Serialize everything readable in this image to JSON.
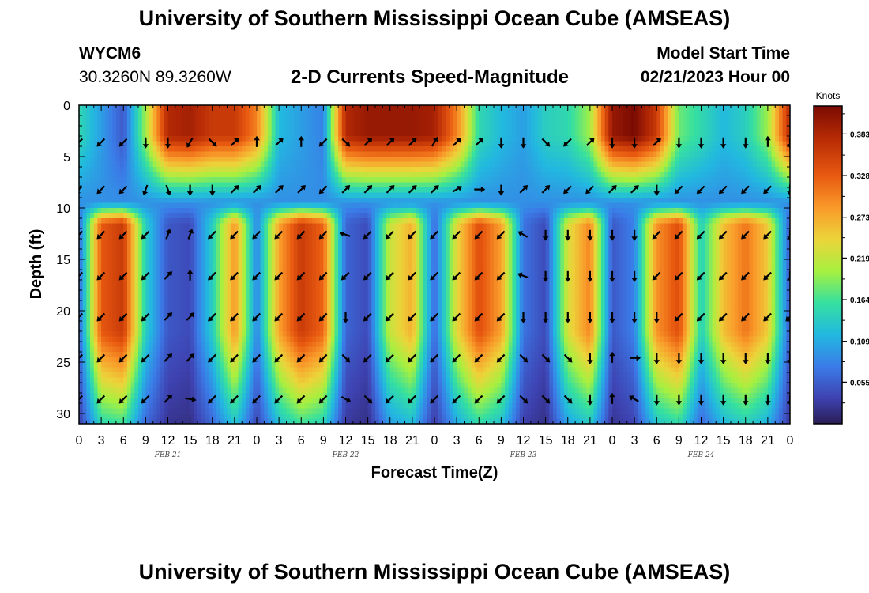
{
  "header": {
    "title": "University of Southern Mississippi Ocean Cube (AMSEAS)",
    "station_id": "WYCM6",
    "coordinates": "30.3260N  89.3260W",
    "plot_title": "2-D Currents Speed-Magnitude",
    "start_label": "Model Start Time",
    "start_value": "02/21/2023 Hour 00"
  },
  "footer": {
    "title": "University of Southern Mississippi Ocean Cube (AMSEAS)"
  },
  "chart_data": {
    "type": "heatmap",
    "title": "2-D Currents Speed-Magnitude",
    "xlabel": "Forecast Time(Z)",
    "ylabel": "Depth (ft)",
    "xlim": [
      0,
      96
    ],
    "ylim": [
      31,
      0
    ],
    "x_tick_labels": [
      "0",
      "3",
      "6",
      "9",
      "12",
      "15",
      "18",
      "21",
      "0",
      "3",
      "6",
      "9",
      "12",
      "15",
      "18",
      "21",
      "0",
      "3",
      "6",
      "9",
      "12",
      "15",
      "18",
      "21",
      "0",
      "3",
      "6",
      "9",
      "12",
      "15",
      "18",
      "21",
      "0"
    ],
    "y_ticks": [
      0,
      5,
      10,
      15,
      20,
      25,
      30
    ],
    "date_labels": [
      {
        "label": "FEB 21",
        "hour": 12
      },
      {
        "label": "FEB 22",
        "hour": 36
      },
      {
        "label": "FEB 23",
        "hour": 60
      },
      {
        "label": "FEB 24",
        "hour": 84
      }
    ],
    "colorbar": {
      "unit": "Knots",
      "range": [
        0.0,
        0.42
      ],
      "tick_values": [
        0.055,
        0.109,
        0.164,
        0.219,
        0.273,
        0.328,
        0.383
      ],
      "tick_labels": [
        "0.055",
        "0.109",
        "0.164",
        "0.219",
        "0.273",
        "0.328",
        "0.383"
      ]
    },
    "surface_speed_profile": {
      "hours": [
        0,
        3,
        6,
        9,
        12,
        15,
        18,
        21,
        24,
        27,
        30,
        33,
        36,
        39,
        42,
        45,
        48,
        51,
        54,
        57,
        60,
        63,
        66,
        69,
        72,
        75,
        78,
        81,
        84,
        87,
        90,
        93,
        96
      ],
      "speed_knots": [
        0.15,
        0.1,
        0.05,
        0.2,
        0.38,
        0.39,
        0.36,
        0.36,
        0.3,
        0.12,
        0.1,
        0.08,
        0.38,
        0.4,
        0.4,
        0.4,
        0.39,
        0.3,
        0.15,
        0.12,
        0.1,
        0.14,
        0.15,
        0.2,
        0.4,
        0.42,
        0.36,
        0.18,
        0.15,
        0.12,
        0.14,
        0.2,
        0.38
      ]
    },
    "subsurface_speed_profile": {
      "hours": [
        0,
        3,
        6,
        9,
        12,
        15,
        18,
        21,
        24,
        27,
        30,
        33,
        36,
        39,
        42,
        45,
        48,
        51,
        54,
        57,
        60,
        63,
        66,
        69,
        72,
        75,
        78,
        81,
        84,
        87,
        90,
        93,
        96
      ],
      "speed_knots": [
        0.06,
        0.33,
        0.36,
        0.14,
        0.05,
        0.04,
        0.14,
        0.29,
        0.08,
        0.28,
        0.36,
        0.32,
        0.06,
        0.04,
        0.22,
        0.27,
        0.06,
        0.24,
        0.34,
        0.28,
        0.07,
        0.04,
        0.23,
        0.3,
        0.05,
        0.08,
        0.29,
        0.34,
        0.14,
        0.26,
        0.31,
        0.25,
        0.05
      ]
    },
    "vector_depths_ft": [
      3.6,
      8.2,
      12.6,
      16.6,
      20.6,
      24.6,
      28.6
    ],
    "vector_angles_deg": [
      [
        225,
        210,
        225,
        225,
        225,
        225,
        225
      ],
      [
        225,
        225,
        225,
        225,
        225,
        225,
        225
      ],
      [
        225,
        225,
        225,
        225,
        225,
        225,
        225
      ],
      [
        180,
        200,
        225,
        225,
        225,
        225,
        225
      ],
      [
        180,
        160,
        20,
        45,
        45,
        45,
        45
      ],
      [
        210,
        180,
        20,
        0,
        45,
        45,
        100
      ],
      [
        135,
        180,
        225,
        225,
        225,
        225,
        225
      ],
      [
        45,
        45,
        225,
        225,
        225,
        225,
        225
      ],
      [
        0,
        45,
        225,
        225,
        225,
        225,
        225
      ],
      [
        45,
        45,
        225,
        225,
        225,
        225,
        225
      ],
      [
        0,
        45,
        225,
        225,
        225,
        225,
        225
      ],
      [
        225,
        225,
        225,
        225,
        225,
        225,
        225
      ],
      [
        135,
        45,
        290,
        225,
        180,
        135,
        120
      ],
      [
        45,
        45,
        225,
        225,
        225,
        225,
        135
      ],
      [
        45,
        45,
        225,
        225,
        225,
        225,
        225
      ],
      [
        45,
        45,
        225,
        225,
        225,
        225,
        225
      ],
      [
        30,
        45,
        225,
        225,
        225,
        225,
        225
      ],
      [
        45,
        60,
        225,
        225,
        225,
        225,
        225
      ],
      [
        45,
        90,
        225,
        225,
        225,
        225,
        225
      ],
      [
        180,
        180,
        225,
        225,
        225,
        225,
        225
      ],
      [
        180,
        45,
        300,
        290,
        180,
        135,
        135
      ],
      [
        135,
        45,
        180,
        180,
        180,
        135,
        135
      ],
      [
        225,
        225,
        180,
        180,
        180,
        135,
        135
      ],
      [
        45,
        225,
        180,
        180,
        180,
        180,
        180
      ],
      [
        180,
        45,
        180,
        180,
        180,
        0,
        0
      ],
      [
        180,
        45,
        180,
        180,
        180,
        90,
        300
      ],
      [
        45,
        180,
        225,
        225,
        180,
        180,
        180
      ],
      [
        180,
        225,
        225,
        225,
        225,
        180,
        180
      ],
      [
        180,
        225,
        225,
        225,
        225,
        180,
        180
      ],
      [
        180,
        225,
        225,
        225,
        225,
        180,
        180
      ],
      [
        180,
        225,
        225,
        225,
        225,
        180,
        180
      ],
      [
        0,
        225,
        225,
        225,
        225,
        180,
        180
      ],
      [
        180,
        180,
        180,
        180,
        225,
        180,
        180
      ]
    ]
  }
}
